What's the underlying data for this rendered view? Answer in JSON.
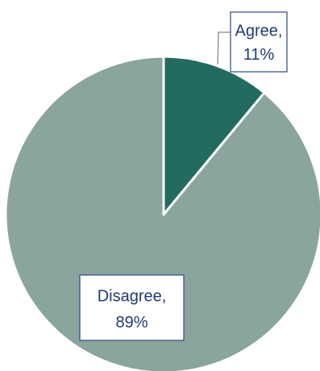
{
  "chart_data": {
    "type": "pie",
    "title": "",
    "slices": [
      {
        "label": "Agree",
        "value": 11,
        "percent_text": "11%",
        "color": "#236b5e"
      },
      {
        "label": "Disagree",
        "value": 89,
        "percent_text": "89%",
        "color": "#8aa59d"
      }
    ],
    "start_angle_deg": 0,
    "direction": "clockwise",
    "slice_border_color": "#ffffff",
    "label_border_color": "#2f4a86",
    "label_text_color": "#1f3a73",
    "leader_line_color": "#9a9a9a",
    "legend": "none",
    "data_labels": [
      {
        "line1": "Agree,",
        "line2": "11%"
      },
      {
        "line1": "Disagree,",
        "line2": "89%"
      }
    ]
  }
}
